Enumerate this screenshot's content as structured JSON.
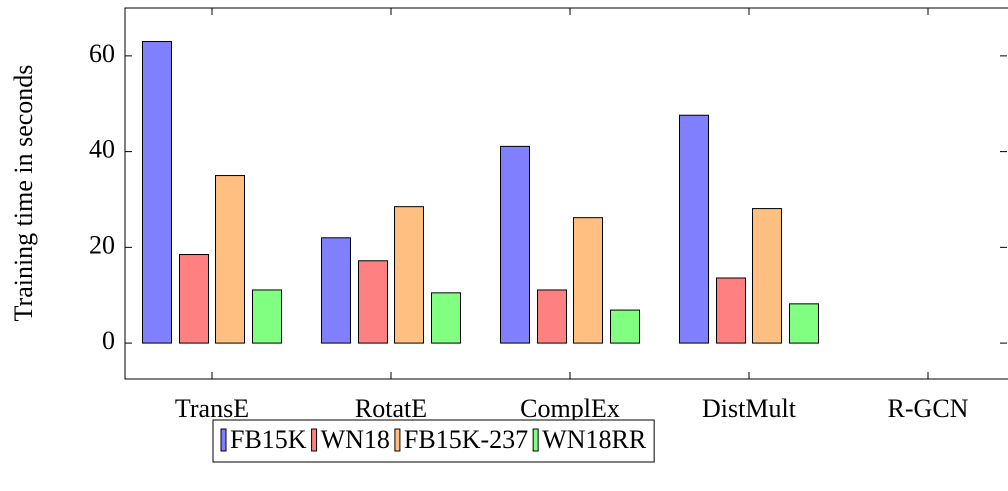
{
  "chart_data": {
    "type": "bar",
    "y_label": "Training time in seconds",
    "categories": [
      "TransE",
      "RotatE",
      "ComplEx",
      "DistMult",
      "R-GCN"
    ],
    "series": [
      {
        "name": "FB15K",
        "color": "#8080ff",
        "values": [
          63,
          22,
          41.1,
          47.6,
          0
        ]
      },
      {
        "name": "WN18",
        "color": "#ff8080",
        "values": [
          18.5,
          17.2,
          11.1,
          13.6,
          0
        ]
      },
      {
        "name": "FB15K-237",
        "color": "#ffbf80",
        "values": [
          35,
          28.5,
          26.2,
          28.1,
          0
        ]
      },
      {
        "name": "WN18RR",
        "color": "#80ff80",
        "values": [
          11.1,
          10.5,
          6.9,
          8.2,
          0
        ]
      }
    ],
    "ylim": [
      -7.5,
      70
    ],
    "yticks": [
      0,
      20,
      40,
      60
    ]
  }
}
